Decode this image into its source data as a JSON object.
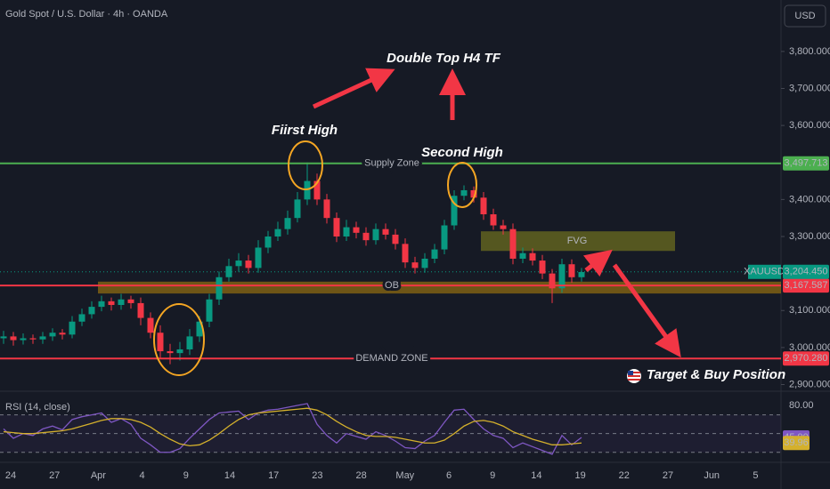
{
  "header": {
    "title": "Gold Spot / U.S. Dollar · 4h · OANDA",
    "currency": "USD"
  },
  "annotations": [
    "Double Top H4 TF",
    "Fiirst High",
    "Second High",
    "Target & Buy Position"
  ],
  "chart_data": [
    {
      "type": "candlestick",
      "series": [
        {
          "name": "XAUUSD",
          "up_color": "#089981",
          "down_color": "#f23645",
          "open": [
            3025,
            3030,
            3020,
            3025,
            3022,
            3030,
            3040,
            3035,
            3070,
            3090,
            3110,
            3125,
            3115,
            3130,
            3120,
            3080,
            3040,
            2990,
            2985,
            2995,
            3030,
            3070,
            3130,
            3190,
            3220,
            3235,
            3215,
            3270,
            3300,
            3320,
            3350,
            3400,
            3450,
            3400,
            3350,
            3300,
            3325,
            3310,
            3290,
            3320,
            3305,
            3280,
            3230,
            3215,
            3240,
            3265,
            3330,
            3410,
            3425,
            3405,
            3360,
            3330,
            3320,
            3240,
            3255,
            3235,
            3200,
            3160,
            3225,
            3190
          ],
          "high": [
            3045,
            3042,
            3038,
            3035,
            3042,
            3052,
            3050,
            3085,
            3105,
            3125,
            3140,
            3135,
            3145,
            3140,
            3135,
            3095,
            3060,
            3010,
            3015,
            3050,
            3085,
            3145,
            3205,
            3240,
            3255,
            3250,
            3290,
            3315,
            3340,
            3370,
            3420,
            3500,
            3470,
            3415,
            3365,
            3345,
            3340,
            3325,
            3335,
            3335,
            3320,
            3295,
            3245,
            3255,
            3280,
            3345,
            3425,
            3438,
            3435,
            3420,
            3375,
            3345,
            3335,
            3270,
            3268,
            3250,
            3212,
            3240,
            3238,
            3215
          ],
          "low": [
            3010,
            3005,
            3008,
            3010,
            3010,
            3018,
            3022,
            3025,
            3058,
            3078,
            3098,
            3100,
            3102,
            3105,
            3060,
            3025,
            2970,
            2955,
            2965,
            2980,
            3015,
            3055,
            3115,
            3178,
            3205,
            3200,
            3202,
            3255,
            3288,
            3305,
            3338,
            3385,
            3385,
            3335,
            3285,
            3288,
            3295,
            3275,
            3278,
            3292,
            3265,
            3215,
            3200,
            3202,
            3228,
            3252,
            3318,
            3398,
            3392,
            3345,
            3318,
            3305,
            3225,
            3228,
            3222,
            3185,
            3120,
            3148,
            3175,
            3178
          ],
          "close": [
            3030,
            3020,
            3025,
            3022,
            3030,
            3040,
            3035,
            3070,
            3090,
            3110,
            3125,
            3115,
            3130,
            3120,
            3080,
            3040,
            2990,
            2985,
            2995,
            3030,
            3070,
            3130,
            3190,
            3220,
            3235,
            3215,
            3270,
            3300,
            3320,
            3350,
            3400,
            3450,
            3400,
            3350,
            3300,
            3325,
            3310,
            3290,
            3320,
            3305,
            3280,
            3230,
            3215,
            3240,
            3265,
            3330,
            3410,
            3425,
            3405,
            3360,
            3330,
            3320,
            3240,
            3255,
            3235,
            3200,
            3160,
            3225,
            3190,
            3204
          ]
        }
      ],
      "ylim": [
        2882,
        3939
      ],
      "yticks": [
        {
          "value": 3800,
          "label": "3,800.000"
        },
        {
          "value": 3700,
          "label": "3,700.000"
        },
        {
          "value": 3600,
          "label": "3,600.000"
        },
        {
          "value": 3400,
          "label": "3,400.000"
        },
        {
          "value": 3300,
          "label": "3,300.000"
        },
        {
          "value": 3100,
          "label": "3,100.000"
        },
        {
          "value": 3000,
          "label": "3,000.000"
        },
        {
          "value": 2900,
          "label": "2,900.000"
        }
      ],
      "x_labels": [
        "24",
        "27",
        "Apr",
        "4",
        "9",
        "14",
        "17",
        "23",
        "28",
        "May",
        "6",
        "9",
        "14",
        "19",
        "22",
        "27",
        "Jun",
        "5"
      ],
      "levels": [
        {
          "name": "Supply Zone",
          "value": 3497.713,
          "label": "3,497.713",
          "color": "#4caf50"
        },
        {
          "name": "OB",
          "value": 3167.587,
          "label": "3,167.587",
          "color": "#f23645",
          "zone": [
            3178,
            3146
          ],
          "zone_color": "#b8860b"
        },
        {
          "name": "DEMAND ZONE",
          "value": 2970.28,
          "label": "2,970.280",
          "color": "#f23645"
        }
      ],
      "fvg": {
        "name": "FVG",
        "range": [
          3314,
          3261
        ],
        "color": "#8a8a1e"
      },
      "last_price": {
        "name": "XAUUSD",
        "value": 3204.45,
        "label": "3,204.450",
        "color": "#089981"
      }
    },
    {
      "type": "line",
      "title": "RSI (14, close)",
      "series": [
        {
          "color": "#7e57c2",
          "last_label": "45.90",
          "values": [
            55,
            45,
            50,
            48,
            55,
            58,
            54,
            65,
            68,
            70,
            72,
            62,
            66,
            60,
            45,
            38,
            30,
            30,
            34,
            45,
            55,
            65,
            72,
            73,
            74,
            65,
            72,
            75,
            76,
            78,
            80,
            82,
            60,
            48,
            40,
            50,
            47,
            44,
            52,
            48,
            42,
            35,
            34,
            42,
            48,
            62,
            75,
            76,
            65,
            55,
            48,
            45,
            35,
            40,
            36,
            32,
            28,
            48,
            38,
            45.9
          ]
        },
        {
          "color": "#d4b02c",
          "last_label": "39.96",
          "values": [
            52,
            51,
            50,
            50,
            51,
            52,
            53,
            55,
            58,
            61,
            64,
            66,
            66,
            65,
            62,
            57,
            50,
            44,
            39,
            37,
            38,
            43,
            50,
            58,
            65,
            70,
            72,
            73,
            74,
            75,
            76,
            77,
            75,
            70,
            63,
            57,
            52,
            48,
            47,
            47,
            46,
            44,
            42,
            40,
            40,
            43,
            50,
            58,
            63,
            64,
            62,
            58,
            52,
            48,
            44,
            41,
            38,
            38,
            39,
            39.96
          ]
        }
      ],
      "ylim": [
        22.2,
        95.2
      ],
      "yticks": [
        {
          "value": 80,
          "label": "80.00"
        }
      ],
      "hlines": [
        70,
        50,
        30
      ]
    }
  ]
}
